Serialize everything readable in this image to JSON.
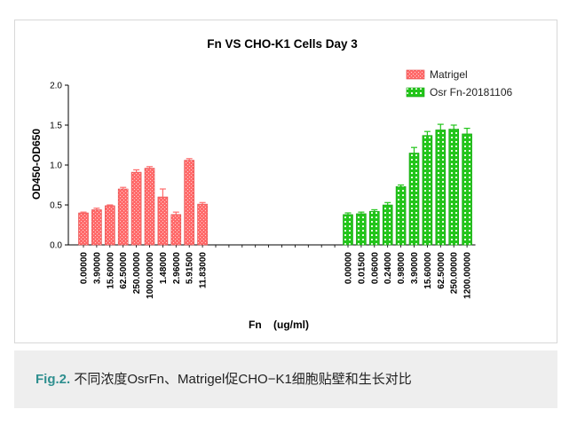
{
  "colors": {
    "matrigel": "#ff6b6b",
    "osr": "#22c51a",
    "axis": "#000000",
    "caption_label": "#2f8f8f",
    "caption_bg": "#eeeeee"
  },
  "caption": {
    "label": "Fig.2.",
    "text": " 不同浓度OsrFn、Matrigel促CHO−K1细胞贴壁和生长对比"
  },
  "chart_data": {
    "type": "bar",
    "title": "Fn VS CHO-K1 Cells Day 3",
    "xlabel": "Fn    (ug/ml)",
    "ylabel": "OD450-OD650",
    "ylim": [
      0,
      2.0
    ],
    "yticks": [
      "0.0",
      "0.5",
      "1.0",
      "1.5",
      "2.0"
    ],
    "legend_position": "top-right",
    "grid": false,
    "series": [
      {
        "name": "Matrigel",
        "color": "#ff6b6b",
        "categories": [
          "0.00000",
          "3.90000",
          "15.60000",
          "62.50000",
          "250.00000",
          "1000.00000",
          "1.48000",
          "2.96000",
          "5.91500",
          "11.83000"
        ],
        "values": [
          0.4,
          0.44,
          0.49,
          0.7,
          0.91,
          0.96,
          0.6,
          0.38,
          1.06,
          0.51
        ],
        "errors": [
          0.01,
          0.02,
          0.01,
          0.02,
          0.03,
          0.02,
          0.1,
          0.03,
          0.02,
          0.02
        ]
      },
      {
        "name": "Osr Fn-20181106",
        "color": "#22c51a",
        "categories": [
          "0.00000",
          "0.01500",
          "0.06000",
          "0.24000",
          "0.98000",
          "3.90000",
          "15.60000",
          "62.50000",
          "250.00000",
          "1200.00000"
        ],
        "values": [
          0.38,
          0.39,
          0.42,
          0.5,
          0.73,
          1.15,
          1.37,
          1.44,
          1.45,
          1.39
        ],
        "errors": [
          0.02,
          0.02,
          0.02,
          0.03,
          0.02,
          0.07,
          0.05,
          0.07,
          0.05,
          0.07
        ]
      }
    ]
  }
}
